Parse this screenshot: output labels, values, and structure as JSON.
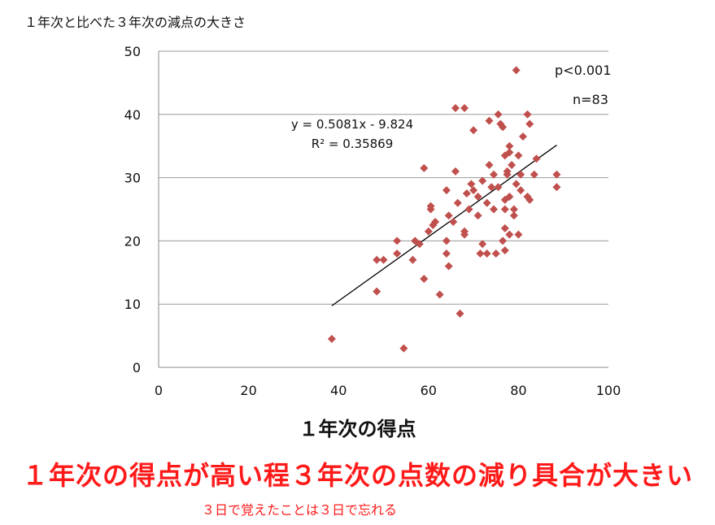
{
  "chart_data": {
    "type": "scatter",
    "title": "１年次と比べた３年次の減点の大きさ",
    "xlabel": "１年次の得点",
    "ylabel": "１年次と比べた３年次の減点の大きさ",
    "xlim": [
      0,
      100
    ],
    "ylim": [
      0,
      50
    ],
    "xticks": [
      "0",
      "20",
      "40",
      "60",
      "80",
      "100"
    ],
    "yticks": [
      "0",
      "10",
      "20",
      "30",
      "40",
      "50"
    ],
    "grid": "horizontal",
    "marker_color": "#c0504d",
    "trendline": {
      "equation": "y = 0.5081x - 9.824",
      "r2": "R² = 0.35869",
      "slope": 0.5081,
      "intercept": -9.824,
      "x_range": [
        38.5,
        88.5
      ]
    },
    "annotations": [
      "p<0.001",
      "n=83"
    ],
    "points": [
      [
        38.5,
        4.5
      ],
      [
        48.5,
        17
      ],
      [
        48.5,
        12
      ],
      [
        50,
        17
      ],
      [
        53,
        20
      ],
      [
        53,
        18
      ],
      [
        54.5,
        3
      ],
      [
        56.5,
        17
      ],
      [
        57,
        20
      ],
      [
        58,
        19.5
      ],
      [
        59,
        31.5
      ],
      [
        59,
        14
      ],
      [
        60,
        21.5
      ],
      [
        60.5,
        25
      ],
      [
        60.5,
        25.5
      ],
      [
        61,
        22.5
      ],
      [
        61.5,
        23
      ],
      [
        62.5,
        11.5
      ],
      [
        64,
        28
      ],
      [
        64,
        20
      ],
      [
        64,
        18
      ],
      [
        64.5,
        16
      ],
      [
        64.5,
        24
      ],
      [
        65.5,
        23
      ],
      [
        66,
        41
      ],
      [
        66,
        31
      ],
      [
        66.5,
        26
      ],
      [
        67,
        8.5
      ],
      [
        68,
        41
      ],
      [
        68,
        21.5
      ],
      [
        68,
        21
      ],
      [
        68.5,
        27.5
      ],
      [
        69,
        25
      ],
      [
        69.5,
        29
      ],
      [
        70,
        28
      ],
      [
        70,
        37.5
      ],
      [
        71,
        27
      ],
      [
        71,
        24
      ],
      [
        71.5,
        18
      ],
      [
        72,
        29.5
      ],
      [
        72,
        19.5
      ],
      [
        73,
        26
      ],
      [
        73,
        18
      ],
      [
        73.5,
        39
      ],
      [
        73.5,
        32
      ],
      [
        74,
        28.5
      ],
      [
        74.5,
        30.5
      ],
      [
        74.5,
        25
      ],
      [
        75,
        18
      ],
      [
        75.5,
        40
      ],
      [
        75.5,
        28.5
      ],
      [
        76,
        38.5
      ],
      [
        76.5,
        20
      ],
      [
        76.5,
        38
      ],
      [
        77,
        33.5
      ],
      [
        77,
        26.5
      ],
      [
        77,
        25
      ],
      [
        77,
        22
      ],
      [
        77,
        18.5
      ],
      [
        77.5,
        31
      ],
      [
        77.5,
        30.5
      ],
      [
        78,
        35
      ],
      [
        78,
        34
      ],
      [
        78,
        27
      ],
      [
        78,
        21
      ],
      [
        78.5,
        32
      ],
      [
        79,
        25
      ],
      [
        79,
        24
      ],
      [
        79.5,
        29
      ],
      [
        79.5,
        47
      ],
      [
        80,
        33.5
      ],
      [
        80,
        21
      ],
      [
        80.5,
        30.5
      ],
      [
        80.5,
        28
      ],
      [
        81,
        36.5
      ],
      [
        82,
        27
      ],
      [
        82,
        40
      ],
      [
        82.5,
        38.5
      ],
      [
        82.5,
        26.5
      ],
      [
        83.5,
        30.5
      ],
      [
        84,
        33
      ],
      [
        88.5,
        30.5
      ],
      [
        88.5,
        28.5
      ]
    ]
  },
  "footer": {
    "headline": "１年次の得点が高い程３年次の点数の減り具合が大きい",
    "note": "３日で覚えたことは３日で忘れる"
  }
}
